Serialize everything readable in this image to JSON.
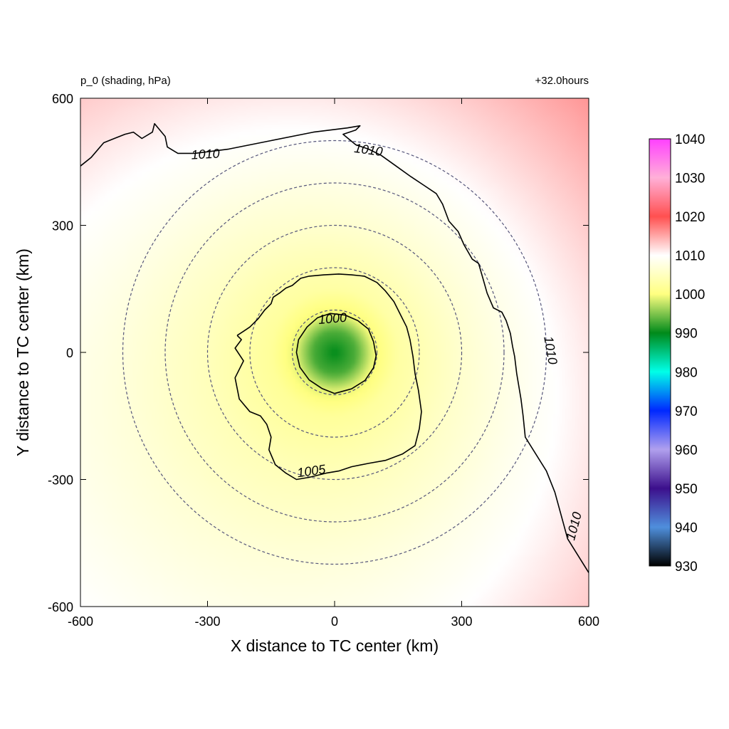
{
  "chart_data": {
    "type": "heatmap",
    "title_left": "p_0 (shading, hPa)",
    "title_right": "+32.0hours",
    "xlabel": "X distance to TC center (km)",
    "ylabel": "Y distance to TC center (km)",
    "xlim": [
      -600,
      600
    ],
    "ylim": [
      -600,
      600
    ],
    "x_ticks": [
      "-600",
      "-300",
      "0",
      "300",
      "600"
    ],
    "y_ticks": [
      "600",
      "300",
      "0",
      "-300",
      "-600"
    ],
    "x_tick_values": [
      -600,
      -300,
      0,
      300,
      600
    ],
    "y_tick_values": [
      600,
      300,
      0,
      -300,
      -600
    ],
    "colorbar": {
      "min": 930,
      "max": 1040,
      "ticks": [
        "1040",
        "1030",
        "1020",
        "1010",
        "1000",
        "990",
        "980",
        "970",
        "960",
        "950",
        "940",
        "930"
      ],
      "tick_values": [
        1040,
        1030,
        1020,
        1010,
        1000,
        990,
        980,
        970,
        960,
        950,
        940,
        930
      ],
      "stops": [
        {
          "value": 930,
          "color": "#000000"
        },
        {
          "value": 940,
          "color": "#4f8fdc"
        },
        {
          "value": 950,
          "color": "#3c0f8c"
        },
        {
          "value": 960,
          "color": "#b0a0ee"
        },
        {
          "value": 970,
          "color": "#0028ff"
        },
        {
          "value": 980,
          "color": "#00ffe8"
        },
        {
          "value": 990,
          "color": "#008a1a"
        },
        {
          "value": 1000,
          "color": "#ffff80"
        },
        {
          "value": 1010,
          "color": "#ffffff"
        },
        {
          "value": 1020,
          "color": "#ff5050"
        },
        {
          "value": 1030,
          "color": "#ffb0d8"
        },
        {
          "value": 1040,
          "color": "#ff40ff"
        }
      ]
    },
    "field": {
      "center_pressure_hpa": 990,
      "radial_profile": [
        {
          "r_km": 0,
          "p_hpa": 990
        },
        {
          "r_km": 50,
          "p_hpa": 993
        },
        {
          "r_km": 90,
          "p_hpa": 999
        },
        {
          "r_km": 150,
          "p_hpa": 1002.5
        },
        {
          "r_km": 300,
          "p_hpa": 1005.5
        },
        {
          "r_km": 500,
          "p_hpa": 1008.5
        },
        {
          "r_km": 850,
          "p_hpa": 1013
        }
      ]
    },
    "range_rings_km": [
      100,
      200,
      300,
      400,
      500
    ],
    "contours": [
      {
        "level": "1000",
        "label_at": [
          -5,
          80
        ],
        "label_rotation": -5,
        "path": [
          [
            0,
            -97
          ],
          [
            40,
            -86
          ],
          [
            72,
            -66
          ],
          [
            92,
            -36
          ],
          [
            98,
            -8
          ],
          [
            92,
            25
          ],
          [
            80,
            55
          ],
          [
            55,
            75
          ],
          [
            25,
            88
          ],
          [
            -10,
            92
          ],
          [
            -40,
            82
          ],
          [
            -65,
            60
          ],
          [
            -85,
            30
          ],
          [
            -90,
            0
          ],
          [
            -82,
            -35
          ],
          [
            -60,
            -65
          ],
          [
            -30,
            -85
          ],
          [
            0,
            -97
          ]
        ]
      },
      {
        "level": "1005",
        "label_at": [
          -55,
          -280
        ],
        "label_rotation": -8,
        "path": [
          [
            -230,
            40
          ],
          [
            -220,
            30
          ],
          [
            -235,
            10
          ],
          [
            -215,
            -20
          ],
          [
            -235,
            -60
          ],
          [
            -225,
            -110
          ],
          [
            -200,
            -140
          ],
          [
            -175,
            -150
          ],
          [
            -160,
            -170
          ],
          [
            -150,
            -200
          ],
          [
            -155,
            -230
          ],
          [
            -140,
            -265
          ],
          [
            -115,
            -285
          ],
          [
            -90,
            -300
          ],
          [
            -60,
            -295
          ],
          [
            -20,
            -285
          ],
          [
            10,
            -280
          ],
          [
            40,
            -270
          ],
          [
            80,
            -262
          ],
          [
            120,
            -255
          ],
          [
            160,
            -240
          ],
          [
            190,
            -220
          ],
          [
            200,
            -180
          ],
          [
            205,
            -140
          ],
          [
            198,
            -90
          ],
          [
            190,
            -50
          ],
          [
            185,
            -10
          ],
          [
            178,
            30
          ],
          [
            170,
            60
          ],
          [
            155,
            90
          ],
          [
            140,
            120
          ],
          [
            120,
            145
          ],
          [
            100,
            165
          ],
          [
            70,
            180
          ],
          [
            40,
            183
          ],
          [
            10,
            185
          ],
          [
            -25,
            183
          ],
          [
            -60,
            180
          ],
          [
            -80,
            175
          ],
          [
            -100,
            158
          ],
          [
            -115,
            152
          ],
          [
            -130,
            140
          ],
          [
            -145,
            130
          ],
          [
            -150,
            115
          ],
          [
            -165,
            100
          ],
          [
            -180,
            80
          ],
          [
            -200,
            60
          ],
          [
            -215,
            50
          ],
          [
            -230,
            40
          ]
        ]
      },
      {
        "level": "1010",
        "label_at": [
          -305,
          468
        ],
        "label_rotation": -3,
        "path": [
          [
            -600,
            440
          ],
          [
            -575,
            460
          ],
          [
            -545,
            495
          ],
          [
            -520,
            505
          ],
          [
            -495,
            515
          ],
          [
            -475,
            520
          ],
          [
            -455,
            505
          ],
          [
            -430,
            520
          ],
          [
            -425,
            540
          ],
          [
            -400,
            510
          ],
          [
            -395,
            485
          ],
          [
            -370,
            470
          ],
          [
            -330,
            470
          ],
          [
            -250,
            480
          ],
          [
            -150,
            500
          ],
          [
            -50,
            520
          ],
          [
            30,
            530
          ],
          [
            60,
            535
          ],
          [
            50,
            525
          ],
          [
            20,
            515
          ],
          [
            50,
            490
          ],
          [
            80,
            480
          ],
          [
            110,
            465
          ],
          [
            145,
            440
          ],
          [
            180,
            415
          ],
          [
            210,
            395
          ],
          [
            240,
            375
          ],
          [
            255,
            350
          ],
          [
            270,
            310
          ],
          [
            292,
            285
          ],
          [
            305,
            255
          ],
          [
            325,
            220
          ],
          [
            340,
            210
          ],
          [
            350,
            175
          ],
          [
            360,
            140
          ],
          [
            375,
            105
          ],
          [
            395,
            95
          ],
          [
            405,
            75
          ],
          [
            415,
            45
          ],
          [
            420,
            15
          ],
          [
            425,
            -10
          ],
          [
            430,
            -50
          ],
          [
            440,
            -110
          ],
          [
            445,
            -150
          ],
          [
            450,
            -200
          ],
          [
            500,
            -280
          ],
          [
            520,
            -330
          ],
          [
            550,
            -440
          ],
          [
            600,
            -520
          ]
        ]
      }
    ],
    "contour_labels_extra": [
      {
        "level": "1010",
        "label_at": [
          80,
          478
        ],
        "label_rotation": 8
      },
      {
        "level": "1010",
        "label_at": [
          510,
          5
        ],
        "label_rotation": 80
      },
      {
        "level": "1010",
        "label_at": [
          565,
          -410
        ],
        "label_rotation": -75
      }
    ]
  }
}
